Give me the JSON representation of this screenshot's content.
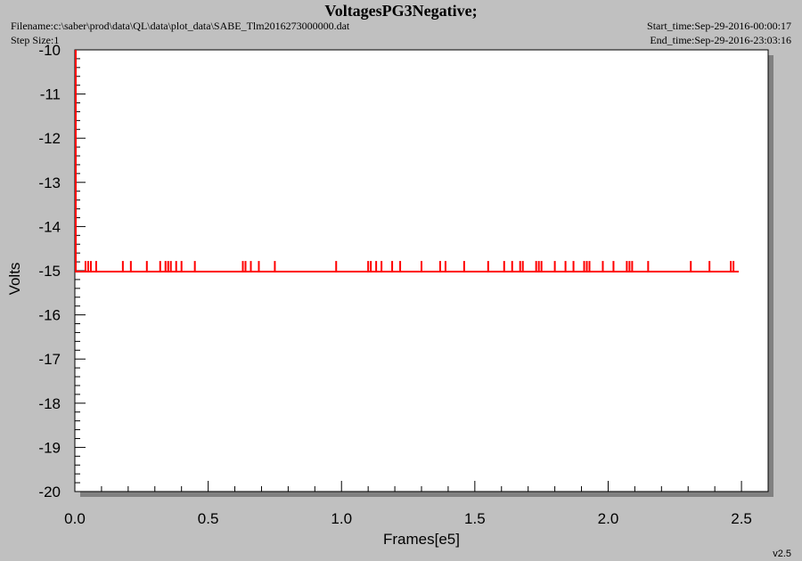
{
  "header": {
    "title": "VoltagesPG3Negative;",
    "filename": "Filename:c:\\saber\\prod\\data\\QL\\data\\plot_data\\SABE_Tlm2016273000000.dat",
    "step_size": "Step Size:1",
    "start_time": "Start_time:Sep-29-2016-00:00:17",
    "end_time": "End_time:Sep-29-2016-23:03:16"
  },
  "footer": {
    "version": "v2.5"
  },
  "chart_data": {
    "type": "line",
    "title": "VoltagesPG3Negative;",
    "xlabel": "Frames[e5]",
    "ylabel": "Volts",
    "xlim": [
      0.0,
      2.6
    ],
    "ylim": [
      -20,
      -10
    ],
    "x_ticks": [
      0.0,
      0.5,
      1.0,
      1.5,
      2.0,
      2.5
    ],
    "x_tick_labels": [
      "0.0",
      "0.5",
      "1.0",
      "1.5",
      "2.0",
      "2.5"
    ],
    "y_ticks": [
      -10,
      -11,
      -12,
      -13,
      -14,
      -15,
      -16,
      -17,
      -18,
      -19,
      -20
    ],
    "y_tick_labels": [
      "-10",
      "-11",
      "-12",
      "-13",
      "-14",
      "-15",
      "-16",
      "-17",
      "-18",
      "-19",
      "-20"
    ],
    "grid": false,
    "series": [
      {
        "color": "#ff0000",
        "baseline": -15.02,
        "x_range": [
          0.0,
          2.49
        ],
        "initial_spike_top": -10.0,
        "spike_top": -14.78,
        "spikes_x": [
          0.04,
          0.05,
          0.06,
          0.08,
          0.18,
          0.21,
          0.27,
          0.32,
          0.34,
          0.35,
          0.36,
          0.38,
          0.4,
          0.45,
          0.63,
          0.64,
          0.66,
          0.69,
          0.75,
          0.98,
          1.1,
          1.11,
          1.13,
          1.15,
          1.19,
          1.22,
          1.3,
          1.37,
          1.39,
          1.46,
          1.55,
          1.61,
          1.64,
          1.67,
          1.68,
          1.73,
          1.74,
          1.75,
          1.8,
          1.84,
          1.87,
          1.91,
          1.92,
          1.93,
          1.98,
          2.02,
          2.07,
          2.08,
          2.09,
          2.15,
          2.31,
          2.38,
          2.46,
          2.47
        ]
      }
    ]
  }
}
